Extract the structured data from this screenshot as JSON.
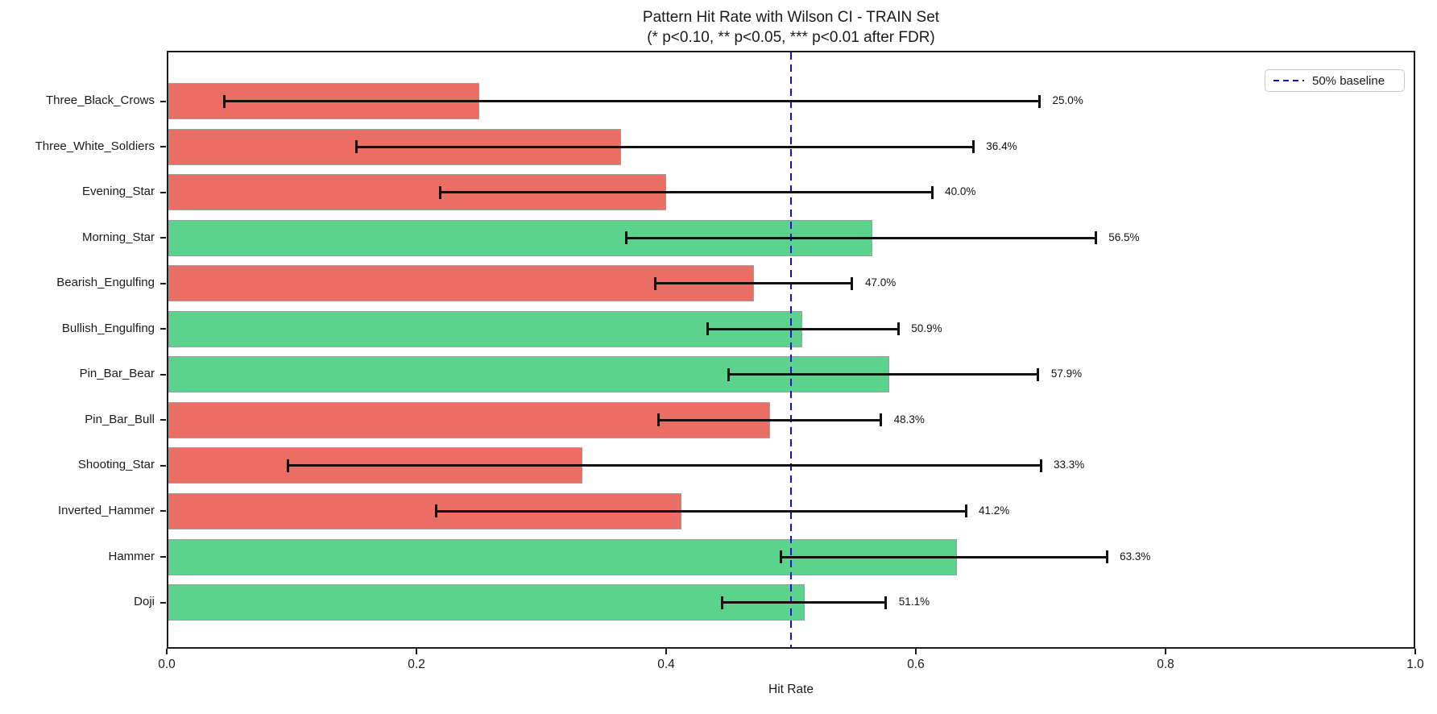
{
  "chart_data": {
    "type": "bar",
    "orientation": "horizontal",
    "title": "Pattern Hit Rate with Wilson CI - TRAIN Set",
    "subtitle": "(* p<0.10, ** p<0.05, *** p<0.01 after FDR)",
    "xlabel": "Hit Rate",
    "xlim": [
      0.0,
      1.0
    ],
    "xticks": [
      "0.0",
      "0.2",
      "0.4",
      "0.6",
      "0.8",
      "1.0"
    ],
    "grid": false,
    "legend": {
      "label": "50% baseline",
      "position": "upper-right"
    },
    "baseline": {
      "x": 0.5,
      "style": "dashed",
      "color": "#0d0deb"
    },
    "colors": {
      "positive": "#5bd38c",
      "negative": "#ea6e63",
      "bar_edge": "#9e9e9e",
      "error_bar": "#111111",
      "axis": "#1c1c1c"
    },
    "bars_top_to_bottom": [
      {
        "category": "Three_Black_Crows",
        "value": 0.25,
        "label": "25.0%",
        "ci": [
          0.046,
          0.699
        ],
        "color_key": "negative"
      },
      {
        "category": "Three_White_Soldiers",
        "value": 0.364,
        "label": "36.4%",
        "ci": [
          0.152,
          0.646
        ],
        "color_key": "negative"
      },
      {
        "category": "Evening_Star",
        "value": 0.4,
        "label": "40.0%",
        "ci": [
          0.219,
          0.613
        ],
        "color_key": "negative"
      },
      {
        "category": "Morning_Star",
        "value": 0.565,
        "label": "56.5%",
        "ci": [
          0.368,
          0.744
        ],
        "color_key": "positive"
      },
      {
        "category": "Bearish_Engulfing",
        "value": 0.47,
        "label": "47.0%",
        "ci": [
          0.391,
          0.549
        ],
        "color_key": "negative"
      },
      {
        "category": "Bullish_Engulfing",
        "value": 0.509,
        "label": "50.9%",
        "ci": [
          0.433,
          0.586
        ],
        "color_key": "positive"
      },
      {
        "category": "Pin_Bar_Bear",
        "value": 0.579,
        "label": "57.9%",
        "ci": [
          0.45,
          0.698
        ],
        "color_key": "positive"
      },
      {
        "category": "Pin_Bar_Bull",
        "value": 0.483,
        "label": "48.3%",
        "ci": [
          0.394,
          0.572
        ],
        "color_key": "negative"
      },
      {
        "category": "Shooting_Star",
        "value": 0.333,
        "label": "33.3%",
        "ci": [
          0.097,
          0.7
        ],
        "color_key": "negative"
      },
      {
        "category": "Inverted_Hammer",
        "value": 0.412,
        "label": "41.2%",
        "ci": [
          0.216,
          0.64
        ],
        "color_key": "negative"
      },
      {
        "category": "Hammer",
        "value": 0.633,
        "label": "63.3%",
        "ci": [
          0.492,
          0.753
        ],
        "color_key": "positive"
      },
      {
        "category": "Doji",
        "value": 0.511,
        "label": "51.1%",
        "ci": [
          0.445,
          0.576
        ],
        "color_key": "positive"
      }
    ]
  }
}
